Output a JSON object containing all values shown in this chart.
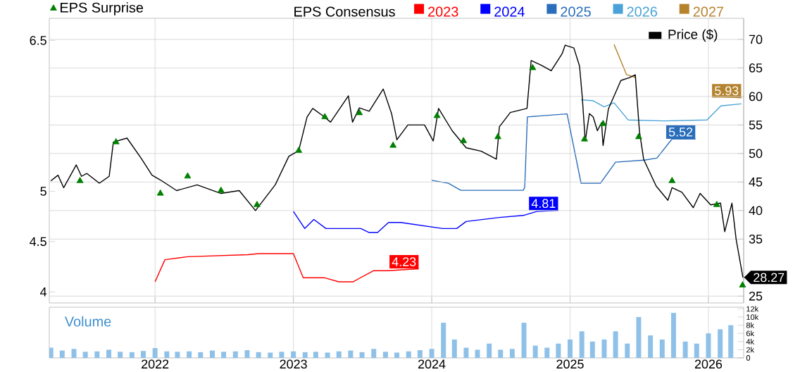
{
  "chart_data": [
    {
      "type": "line",
      "legend_title": "EPS Consensus",
      "legend": "top",
      "grid": true,
      "tick_labels": "y",
      "xlim": [
        "2021-03-28",
        "2026-04-04"
      ],
      "xticks": [
        {
          "value": "2022-01-01",
          "label": null
        },
        {
          "value": "2023-01-01",
          "label": null
        },
        {
          "value": "2024-01-01",
          "label": null
        },
        {
          "value": "2025-01-01",
          "label": null
        },
        {
          "value": "2026-01-01",
          "label": null
        }
      ],
      "ylim": [
        3.89,
        6.72
      ],
      "yticks": [
        4,
        4.5,
        5,
        6.5
      ],
      "y2lim": [
        23.8,
        73.7
      ],
      "y2ticks": [
        25,
        35,
        40,
        45,
        50,
        55,
        60,
        65,
        70
      ],
      "series": [
        {
          "name": "2023",
          "color": "#ff0000",
          "x": [
            "2022-01-01",
            "2022-01-27",
            "2022-03-28",
            "2022-09-02",
            "2022-10-01",
            "2023-01-01",
            "2023-01-27",
            "2023-03-25",
            "2023-05-01",
            "2023-06-07",
            "2023-07-31",
            "2023-09-06",
            "2023-11-28"
          ],
          "values": [
            4.1,
            4.32,
            4.35,
            4.37,
            4.38,
            4.38,
            4.14,
            4.14,
            4.1,
            4.1,
            4.21,
            4.21,
            4.23
          ],
          "value_labels": [
            null,
            null,
            null,
            null,
            null,
            null,
            null,
            null,
            null,
            null,
            null,
            null,
            "4.23"
          ]
        },
        {
          "name": "2024",
          "color": "#0000ff",
          "x": [
            "2023-01-01",
            "2023-01-31",
            "2023-02-24",
            "2023-03-28",
            "2023-06-28",
            "2023-07-20",
            "2023-08-11",
            "2023-09-09",
            "2023-10-11",
            "2024-01-30",
            "2024-03-07",
            "2024-04-01",
            "2024-06-28",
            "2024-08-30",
            "2024-10-05",
            "2024-12-01"
          ],
          "values": [
            4.8,
            4.63,
            4.72,
            4.63,
            4.63,
            4.59,
            4.59,
            4.69,
            4.69,
            4.63,
            4.63,
            4.7,
            4.74,
            4.76,
            4.8,
            4.81
          ],
          "value_labels": [
            null,
            null,
            null,
            null,
            null,
            null,
            null,
            null,
            null,
            null,
            null,
            null,
            null,
            null,
            null,
            "4.81"
          ]
        },
        {
          "name": "2025",
          "color": "#2a6ebb",
          "x": [
            "2024-01-01",
            "2024-02-14",
            "2024-03-18",
            "2024-08-30",
            "2024-09-03",
            "2024-09-10",
            "2024-12-24",
            "2025-01-30",
            "2025-03-22",
            "2025-05-01",
            "2025-07-16",
            "2025-08-18",
            "2025-09-27",
            "2025-11-28"
          ],
          "values": [
            5.11,
            5.08,
            5.01,
            5.01,
            5.04,
            5.74,
            5.77,
            5.08,
            5.08,
            5.29,
            5.31,
            5.33,
            5.52,
            5.52
          ],
          "value_labels": [
            null,
            null,
            null,
            null,
            null,
            null,
            null,
            null,
            null,
            null,
            null,
            null,
            null,
            "5.52"
          ]
        },
        {
          "name": "2026",
          "color": "#4aa3d8",
          "x": [
            "2025-01-30",
            "2025-03-03",
            "2025-04-01",
            "2025-04-27",
            "2025-06-03",
            "2025-09-06",
            "2025-12-28",
            "2026-02-03",
            "2026-03-29"
          ],
          "values": [
            5.91,
            5.9,
            5.84,
            5.88,
            5.71,
            5.7,
            5.71,
            5.85,
            5.87
          ]
        },
        {
          "name": "2027",
          "color": "#b5832e",
          "x": [
            "2025-04-27",
            "2025-05-30",
            "2025-06-24",
            "2025-09-01",
            "2026-02-03",
            "2026-03-29"
          ],
          "values": [
            6.46,
            6.16,
            6.13,
            null,
            5.94,
            5.93
          ],
          "value_labels": [
            null,
            null,
            null,
            null,
            null,
            "5.93"
          ]
        },
        {
          "name": "Price ($)",
          "color": "#000000",
          "axis": "y2",
          "x": [
            "2021-04-01",
            "2021-04-20",
            "2021-05-05",
            "2021-06-07",
            "2021-06-21",
            "2021-07-05",
            "2021-08-07",
            "2021-09-02",
            "2021-09-13",
            "2021-10-19",
            "2021-11-25",
            "2021-12-24",
            "2022-01-19",
            "2022-02-27",
            "2022-04-22",
            "2022-06-24",
            "2022-08-11",
            "2022-09-23",
            "2022-11-14",
            "2022-12-20",
            "2023-01-15",
            "2023-02-06",
            "2023-02-21",
            "2023-03-22",
            "2023-04-09",
            "2023-05-26",
            "2023-06-06",
            "2023-06-24",
            "2023-07-20",
            "2023-08-26",
            "2023-09-17",
            "2023-10-01",
            "2023-10-30",
            "2023-12-13",
            "2024-01-05",
            "2024-01-19",
            "2024-02-24",
            "2024-04-01",
            "2024-05-11",
            "2024-06-20",
            "2024-06-28",
            "2024-07-27",
            "2024-09-09",
            "2024-09-20",
            "2024-10-16",
            "2024-11-12",
            "2024-12-11",
            "2024-12-19",
            "2025-01-11",
            "2025-01-26",
            "2025-02-02",
            "2025-02-10",
            "2025-02-21",
            "2025-03-03",
            "2025-03-14",
            "2025-03-25",
            "2025-03-29",
            "2025-04-12",
            "2025-05-15",
            "2025-06-07",
            "2025-06-22",
            "2025-07-03",
            "2025-07-14",
            "2025-08-16",
            "2025-09-16",
            "2025-09-27",
            "2025-10-23",
            "2025-11-22",
            "2025-12-10",
            "2026-01-07",
            "2026-02-02",
            "2026-02-13",
            "2026-03-04",
            "2026-03-15",
            "2026-04-02"
          ],
          "values": [
            45.2,
            46.2,
            44.0,
            48.0,
            46.0,
            46.5,
            44.8,
            46.0,
            52.0,
            52.7,
            49.2,
            46.2,
            45.2,
            43.5,
            44.5,
            43.0,
            43.5,
            40.0,
            44.5,
            49.5,
            50.5,
            56.4,
            57.9,
            56.5,
            55.5,
            60.1,
            55.5,
            58.0,
            57.4,
            61.3,
            57.0,
            52.4,
            55.0,
            55.0,
            52.2,
            57.9,
            54.0,
            51.0,
            50.4,
            49.0,
            54.7,
            57.2,
            57.9,
            66.3,
            65.5,
            64.5,
            67.5,
            69.0,
            68.5,
            65.3,
            60.0,
            52.2,
            57.0,
            56.4,
            54.0,
            55.4,
            51.4,
            57.8,
            62.8,
            63.3,
            63.8,
            53.9,
            49.0,
            44.3,
            41.8,
            44.0,
            43.2,
            40.5,
            43.0,
            41.0,
            41.3,
            36.3,
            41.3,
            35.0,
            28.27
          ],
          "value_labels": [
            null,
            null,
            null,
            null,
            null,
            null,
            null,
            null,
            null,
            null,
            null,
            null,
            null,
            null,
            null,
            null,
            null,
            null,
            null,
            null,
            null,
            null,
            null,
            null,
            null,
            null,
            null,
            null,
            null,
            null,
            null,
            null,
            null,
            null,
            null,
            null,
            null,
            null,
            null,
            null,
            null,
            null,
            null,
            null,
            null,
            null,
            null,
            null,
            null,
            null,
            null,
            null,
            null,
            null,
            null,
            null,
            null,
            null,
            null,
            null,
            null,
            null,
            null,
            null,
            null,
            null,
            null,
            null,
            null,
            null,
            null,
            null,
            null,
            null,
            "28.27"
          ]
        },
        {
          "name": "EPS Surprise",
          "color": "#008000",
          "type": "scatter",
          "marker": "triangle",
          "axis": "y2",
          "x": [
            "2021-06-17",
            "2021-09-20",
            "2022-01-15",
            "2022-03-28",
            "2022-06-24",
            "2022-09-27",
            "2023-01-15",
            "2023-03-25",
            "2023-06-24",
            "2023-09-21",
            "2024-01-15",
            "2024-03-25",
            "2024-06-24",
            "2024-09-24",
            "2025-02-08",
            "2025-03-29",
            "2025-07-01",
            "2025-09-27",
            "2026-01-23",
            "2026-04-01"
          ],
          "values": [
            45.2,
            52.0,
            43.0,
            46.0,
            43.5,
            41.0,
            50.5,
            56.4,
            57.1,
            51.4,
            56.6,
            52.2,
            52.9,
            65.0,
            52.5,
            55.2,
            52.9,
            45.2,
            41.0,
            26.9
          ]
        }
      ]
    },
    {
      "type": "bar",
      "title": "Volume",
      "grid": "x",
      "color": "#8fc1e8",
      "xlim": [
        "2021-03-28",
        "2026-04-04"
      ],
      "xticks": [
        {
          "value": "2022-01-01",
          "label": "2022"
        },
        {
          "value": "2023-01-01",
          "label": "2023"
        },
        {
          "value": "2024-01-01",
          "label": "2024"
        },
        {
          "value": "2025-01-01",
          "label": "2025"
        },
        {
          "value": "2026-01-01",
          "label": "2026"
        }
      ],
      "ylim": [
        0,
        12.4
      ],
      "yticks": [
        0,
        {
          "value": 2,
          "label": "2k"
        },
        {
          "value": 4,
          "label": "4k"
        },
        {
          "value": 6,
          "label": "6k"
        },
        {
          "value": 8,
          "label": "8k"
        },
        {
          "value": 10,
          "label": "10k"
        },
        {
          "value": 12,
          "label": "12k"
        }
      ],
      "x": [
        "2021-04",
        "2021-05",
        "2021-06",
        "2021-07",
        "2021-08",
        "2021-09",
        "2021-10",
        "2021-11",
        "2021-12",
        "2022-01",
        "2022-02",
        "2022-03",
        "2022-04",
        "2022-05",
        "2022-06",
        "2022-07",
        "2022-08",
        "2022-09",
        "2022-10",
        "2022-11",
        "2022-12",
        "2023-01",
        "2023-02",
        "2023-03",
        "2023-04",
        "2023-05",
        "2023-06",
        "2023-07",
        "2023-08",
        "2023-09",
        "2023-10",
        "2023-11",
        "2023-12",
        "2024-01",
        "2024-02",
        "2024-03",
        "2024-04",
        "2024-05",
        "2024-06",
        "2024-07",
        "2024-08",
        "2024-09",
        "2024-10",
        "2024-11",
        "2024-12",
        "2025-01",
        "2025-02",
        "2025-03",
        "2025-04",
        "2025-05",
        "2025-06",
        "2025-07",
        "2025-08",
        "2025-09",
        "2025-10",
        "2025-11",
        "2025-12",
        "2026-01",
        "2026-02",
        "2026-03"
      ],
      "values": [
        2.5,
        1.8,
        2.2,
        1.5,
        1.6,
        2.0,
        1.5,
        1.4,
        1.7,
        2.4,
        1.6,
        1.5,
        1.6,
        1.4,
        1.8,
        1.5,
        1.6,
        1.9,
        1.4,
        1.3,
        1.5,
        1.6,
        1.4,
        1.5,
        1.3,
        1.6,
        1.8,
        1.4,
        2.2,
        1.5,
        1.3,
        1.6,
        1.9,
        2.2,
        8.6,
        4.5,
        2.5,
        2.0,
        3.5,
        2.0,
        2.2,
        8.6,
        3.0,
        2.5,
        3.5,
        4.5,
        6.5,
        4.0,
        4.5,
        6.5,
        3.5,
        10.0,
        5.5,
        4.5,
        11.0,
        4.0,
        3.5,
        6.0,
        7.0,
        8.0
      ]
    }
  ]
}
